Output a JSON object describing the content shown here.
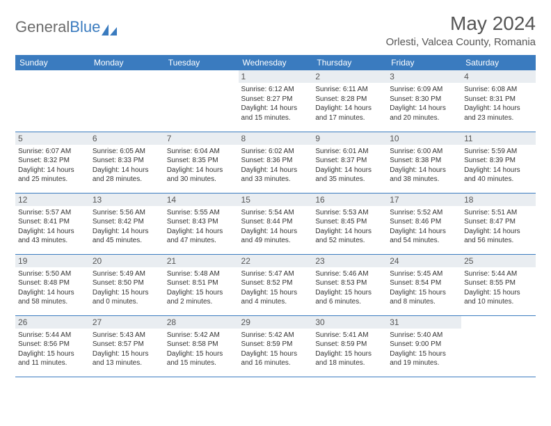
{
  "logo": {
    "text1": "General",
    "text2": "Blue"
  },
  "title": "May 2024",
  "location": "Orlesti, Valcea County, Romania",
  "colors": {
    "header_bg": "#3a7bbf",
    "header_fg": "#ffffff",
    "daynum_bg": "#e9edf1",
    "text": "#333333",
    "page_bg": "#ffffff",
    "logo_gray": "#6b6b6b",
    "logo_blue": "#3a7bbf"
  },
  "typography": {
    "title_fontsize": 28,
    "location_fontsize": 15,
    "dayhdr_fontsize": 12,
    "cell_fontsize": 10
  },
  "day_headers": [
    "Sunday",
    "Monday",
    "Tuesday",
    "Wednesday",
    "Thursday",
    "Friday",
    "Saturday"
  ],
  "weeks": [
    [
      {
        "n": "",
        "sr": "",
        "ss": "",
        "dl": ""
      },
      {
        "n": "",
        "sr": "",
        "ss": "",
        "dl": ""
      },
      {
        "n": "",
        "sr": "",
        "ss": "",
        "dl": ""
      },
      {
        "n": "1",
        "sr": "6:12 AM",
        "ss": "8:27 PM",
        "dl": "14 hours and 15 minutes."
      },
      {
        "n": "2",
        "sr": "6:11 AM",
        "ss": "8:28 PM",
        "dl": "14 hours and 17 minutes."
      },
      {
        "n": "3",
        "sr": "6:09 AM",
        "ss": "8:30 PM",
        "dl": "14 hours and 20 minutes."
      },
      {
        "n": "4",
        "sr": "6:08 AM",
        "ss": "8:31 PM",
        "dl": "14 hours and 23 minutes."
      }
    ],
    [
      {
        "n": "5",
        "sr": "6:07 AM",
        "ss": "8:32 PM",
        "dl": "14 hours and 25 minutes."
      },
      {
        "n": "6",
        "sr": "6:05 AM",
        "ss": "8:33 PM",
        "dl": "14 hours and 28 minutes."
      },
      {
        "n": "7",
        "sr": "6:04 AM",
        "ss": "8:35 PM",
        "dl": "14 hours and 30 minutes."
      },
      {
        "n": "8",
        "sr": "6:02 AM",
        "ss": "8:36 PM",
        "dl": "14 hours and 33 minutes."
      },
      {
        "n": "9",
        "sr": "6:01 AM",
        "ss": "8:37 PM",
        "dl": "14 hours and 35 minutes."
      },
      {
        "n": "10",
        "sr": "6:00 AM",
        "ss": "8:38 PM",
        "dl": "14 hours and 38 minutes."
      },
      {
        "n": "11",
        "sr": "5:59 AM",
        "ss": "8:39 PM",
        "dl": "14 hours and 40 minutes."
      }
    ],
    [
      {
        "n": "12",
        "sr": "5:57 AM",
        "ss": "8:41 PM",
        "dl": "14 hours and 43 minutes."
      },
      {
        "n": "13",
        "sr": "5:56 AM",
        "ss": "8:42 PM",
        "dl": "14 hours and 45 minutes."
      },
      {
        "n": "14",
        "sr": "5:55 AM",
        "ss": "8:43 PM",
        "dl": "14 hours and 47 minutes."
      },
      {
        "n": "15",
        "sr": "5:54 AM",
        "ss": "8:44 PM",
        "dl": "14 hours and 49 minutes."
      },
      {
        "n": "16",
        "sr": "5:53 AM",
        "ss": "8:45 PM",
        "dl": "14 hours and 52 minutes."
      },
      {
        "n": "17",
        "sr": "5:52 AM",
        "ss": "8:46 PM",
        "dl": "14 hours and 54 minutes."
      },
      {
        "n": "18",
        "sr": "5:51 AM",
        "ss": "8:47 PM",
        "dl": "14 hours and 56 minutes."
      }
    ],
    [
      {
        "n": "19",
        "sr": "5:50 AM",
        "ss": "8:48 PM",
        "dl": "14 hours and 58 minutes."
      },
      {
        "n": "20",
        "sr": "5:49 AM",
        "ss": "8:50 PM",
        "dl": "15 hours and 0 minutes."
      },
      {
        "n": "21",
        "sr": "5:48 AM",
        "ss": "8:51 PM",
        "dl": "15 hours and 2 minutes."
      },
      {
        "n": "22",
        "sr": "5:47 AM",
        "ss": "8:52 PM",
        "dl": "15 hours and 4 minutes."
      },
      {
        "n": "23",
        "sr": "5:46 AM",
        "ss": "8:53 PM",
        "dl": "15 hours and 6 minutes."
      },
      {
        "n": "24",
        "sr": "5:45 AM",
        "ss": "8:54 PM",
        "dl": "15 hours and 8 minutes."
      },
      {
        "n": "25",
        "sr": "5:44 AM",
        "ss": "8:55 PM",
        "dl": "15 hours and 10 minutes."
      }
    ],
    [
      {
        "n": "26",
        "sr": "5:44 AM",
        "ss": "8:56 PM",
        "dl": "15 hours and 11 minutes."
      },
      {
        "n": "27",
        "sr": "5:43 AM",
        "ss": "8:57 PM",
        "dl": "15 hours and 13 minutes."
      },
      {
        "n": "28",
        "sr": "5:42 AM",
        "ss": "8:58 PM",
        "dl": "15 hours and 15 minutes."
      },
      {
        "n": "29",
        "sr": "5:42 AM",
        "ss": "8:59 PM",
        "dl": "15 hours and 16 minutes."
      },
      {
        "n": "30",
        "sr": "5:41 AM",
        "ss": "8:59 PM",
        "dl": "15 hours and 18 minutes."
      },
      {
        "n": "31",
        "sr": "5:40 AM",
        "ss": "9:00 PM",
        "dl": "15 hours and 19 minutes."
      },
      {
        "n": "",
        "sr": "",
        "ss": "",
        "dl": ""
      }
    ]
  ],
  "labels": {
    "sunrise": "Sunrise:",
    "sunset": "Sunset:",
    "daylight": "Daylight:"
  }
}
